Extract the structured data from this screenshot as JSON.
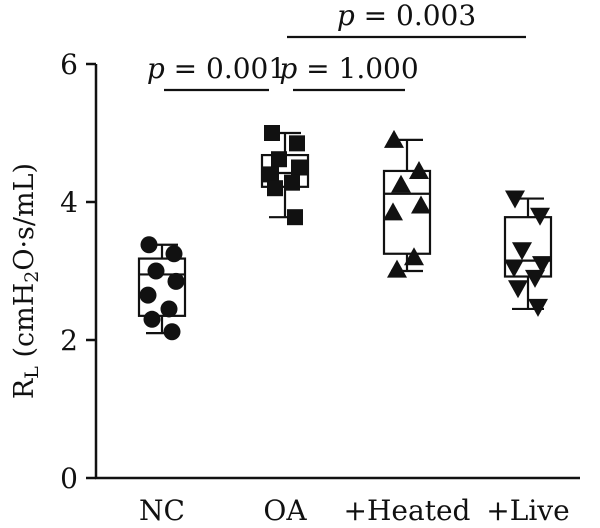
{
  "chart_data": {
    "type": "box",
    "ylabel": {
      "main": "R",
      "sub_main": "L",
      "prefix": " (cmH",
      "sub2": "2",
      "suffix": "O·s/mL)"
    },
    "ylim": [
      0,
      6
    ],
    "yticks": [
      "0",
      "2",
      "4",
      "6"
    ],
    "categories": [
      "NC",
      "OA",
      "+Heated",
      "+Live"
    ],
    "series": [
      {
        "category": "NC",
        "marker": "circle",
        "min": 2.1,
        "q1": 2.35,
        "median": 2.95,
        "q3": 3.18,
        "max": 3.38,
        "points": [
          3.38,
          3.25,
          3.0,
          2.85,
          2.65,
          2.45,
          2.3,
          2.12
        ]
      },
      {
        "category": "OA",
        "marker": "square",
        "min": 3.78,
        "q1": 4.22,
        "median": 4.42,
        "q3": 4.68,
        "max": 5.0,
        "points": [
          5.0,
          4.85,
          4.62,
          4.5,
          4.4,
          4.28,
          4.2,
          3.78
        ]
      },
      {
        "category": "+Heated",
        "marker": "triangle-up",
        "min": 3.0,
        "q1": 3.25,
        "median": 4.12,
        "q3": 4.45,
        "max": 4.9,
        "points": [
          4.9,
          4.45,
          4.25,
          3.95,
          3.85,
          3.2,
          3.02
        ]
      },
      {
        "category": "+Live",
        "marker": "triangle-down",
        "min": 2.45,
        "q1": 2.92,
        "median": 3.15,
        "q3": 3.78,
        "max": 4.05,
        "points": [
          4.05,
          3.8,
          3.3,
          3.1,
          3.05,
          2.9,
          2.75,
          2.48
        ]
      }
    ],
    "comparisons": [
      {
        "from": "NC",
        "to": "OA",
        "label_p": "p",
        "label_value": " = 0.001",
        "level": 0
      },
      {
        "from": "OA",
        "to": "+Heated",
        "label_p": "p",
        "label_value": " = 1.000",
        "level": 0
      },
      {
        "from": "OA",
        "to": "+Live",
        "label_p": "p",
        "label_value": " = 0.003",
        "level": 1
      }
    ],
    "grid": false,
    "legend": "none"
  }
}
